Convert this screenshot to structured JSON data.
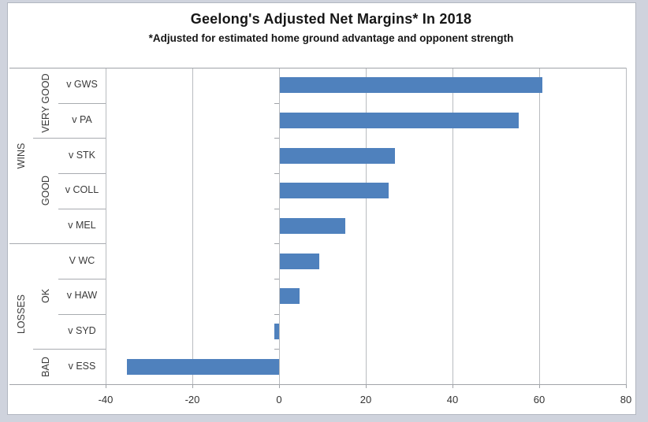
{
  "chart_data": {
    "type": "bar",
    "orientation": "horizontal",
    "title": "Geelong's Adjusted Net Margins* In 2018",
    "subtitle": "*Adjusted for estimated home ground advantage and opponent strength",
    "categories": [
      "v GWS",
      "v PA",
      "v STK",
      "v COLL",
      "v MEL",
      "V WC",
      "v HAW",
      "v SYD",
      "v ESS"
    ],
    "values": [
      60.5,
      55,
      26.5,
      25,
      15,
      9,
      4.5,
      -1,
      -35
    ],
    "groups": [
      {
        "label": "WINS",
        "span": [
          0,
          5
        ]
      },
      {
        "label": "LOSSES",
        "span": [
          5,
          9
        ]
      }
    ],
    "subgroups": [
      {
        "label": "VERY GOOD",
        "span": [
          0,
          2
        ]
      },
      {
        "label": "GOOD",
        "span": [
          2,
          5
        ]
      },
      {
        "label": "OK",
        "span": [
          5,
          8
        ]
      },
      {
        "label": "BAD",
        "span": [
          8,
          9
        ]
      }
    ],
    "x_ticks": [
      -40,
      -20,
      0,
      20,
      40,
      60,
      80
    ],
    "xlim": [
      -40,
      80
    ],
    "grid": true,
    "legend": false,
    "bar_color": "#4F81BD"
  },
  "colors": {
    "bar": "#4F81BD",
    "gridline": "#b9bcc0",
    "axis": "#a0a3a8",
    "page_background": "#cfd3dd",
    "chart_background": "#ffffff",
    "text": "#3a3a3a"
  }
}
